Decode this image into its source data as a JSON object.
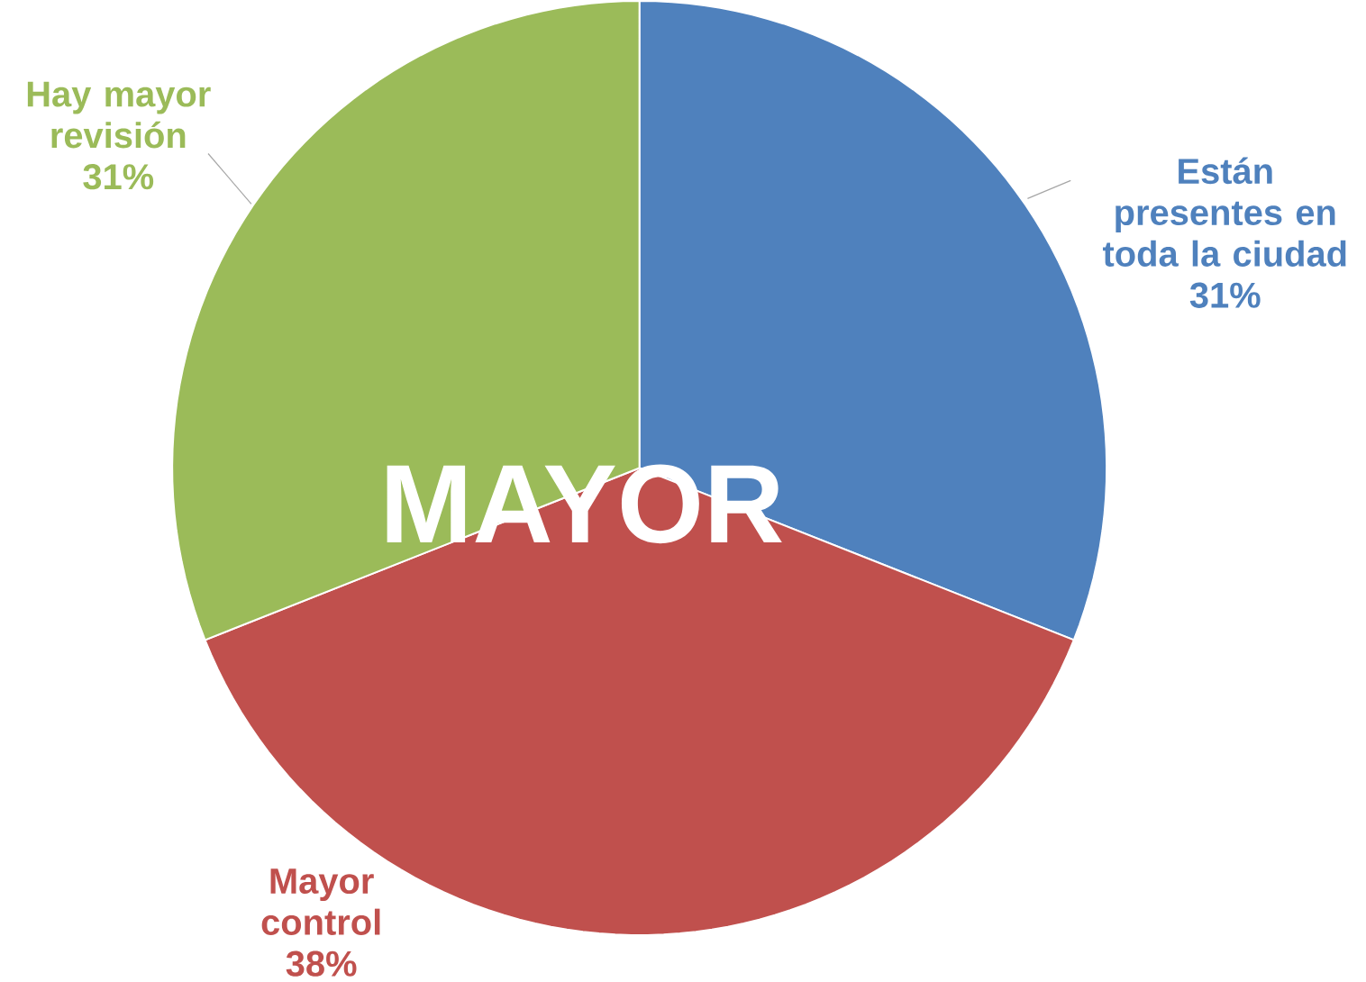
{
  "chart_data": {
    "type": "pie",
    "title": "MAYOR",
    "categories": [
      "Están presentes en toda la ciudad",
      "Mayor control",
      "Hay mayor revisión"
    ],
    "values": [
      31,
      38,
      31
    ],
    "value_labels": [
      "31%",
      "38%",
      "31%"
    ],
    "colors": [
      "#4f81bd",
      "#c0504d",
      "#9bbb59"
    ]
  }
}
